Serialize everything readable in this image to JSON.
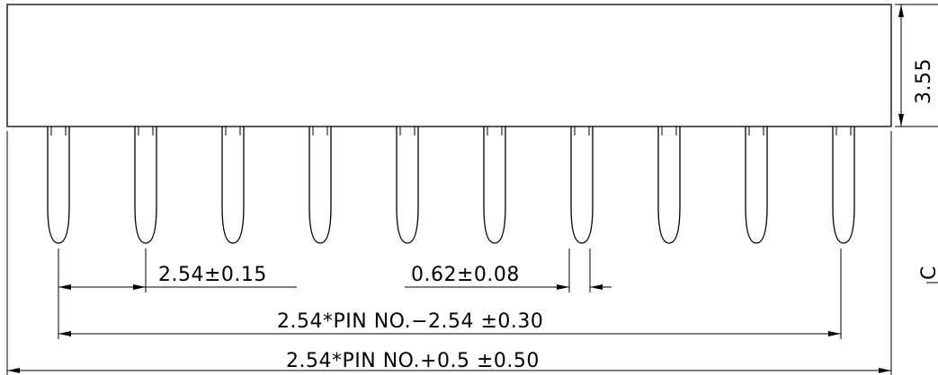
{
  "drawing": {
    "pin_count": 10,
    "labels": {
      "body_height": "3.55",
      "pitch": "2.54±0.15",
      "pin_width": "0.62±0.08",
      "span_inner": "2.54*PIN  NO.−2.54  ±0.30",
      "span_outer": "2.54*PIN  NO.+0.5  ±0.50",
      "edge_mark": "C"
    }
  }
}
